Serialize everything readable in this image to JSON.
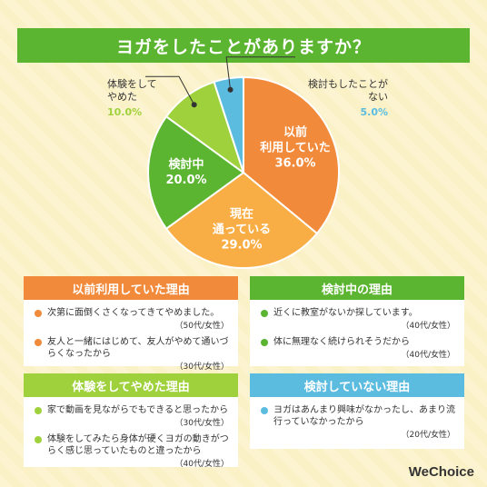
{
  "title": "ヨガをしたことがありますか？",
  "colors": {
    "orange": "#f28a3b",
    "light_orange": "#f9ae45",
    "green": "#5cb531",
    "light_green": "#9fd13c",
    "blue": "#5bbce0"
  },
  "chart_data": {
    "type": "pie",
    "title": "ヨガをしたことがありますか？",
    "slices": [
      {
        "label": "以前利用していた",
        "label_lines": [
          "以前",
          "利用していた"
        ],
        "value": 36.0,
        "pct_text": "36.0%",
        "color": "#f28a3b"
      },
      {
        "label": "現在通っている",
        "label_lines": [
          "現在",
          "通っている"
        ],
        "value": 29.0,
        "pct_text": "29.0%",
        "color": "#f9ae45"
      },
      {
        "label": "検討中",
        "label_lines": [
          "検討中"
        ],
        "value": 20.0,
        "pct_text": "20.0%",
        "color": "#5cb531"
      },
      {
        "label": "体験をしてやめた",
        "label_lines": [
          "体験をして",
          "やめた"
        ],
        "value": 10.0,
        "pct_text": "10.0%",
        "color": "#9fd13c"
      },
      {
        "label": "検討もしたことがない",
        "label_lines": [
          "検討もしたことが",
          "ない"
        ],
        "value": 5.0,
        "pct_text": "5.0%",
        "color": "#5bbce0"
      }
    ]
  },
  "outside_labels": {
    "left": {
      "line1": "体験をして",
      "line2": "やめた",
      "pct": "10.0%"
    },
    "right": {
      "line1": "検討もしたことが",
      "line2": "ない",
      "pct": "5.0%"
    }
  },
  "boxes": {
    "past": {
      "heading": "以前利用していた理由",
      "items": [
        {
          "text": "次第に面倒くさくなってきてやめました。",
          "who": "（50代/女性）"
        },
        {
          "text": "友人と一緒にはじめて、友人がやめて通いづらくなったから",
          "who": "（30代/女性）"
        }
      ]
    },
    "considering": {
      "heading": "検討中の理由",
      "items": [
        {
          "text": "近くに教室がないか探しています。",
          "who": "（40代/女性）"
        },
        {
          "text": "体に無理なく続けられそうだから",
          "who": "（40代/女性）"
        }
      ]
    },
    "quit": {
      "heading": "体験をしてやめた理由",
      "items": [
        {
          "text": "家で動画を見ながらでもできると思ったから",
          "who": "（30代/女性）"
        },
        {
          "text": "体験をしてみたら身体が硬くヨガの動きがつらく感じ思っていたものと違ったから",
          "who": "（40代/女性）"
        }
      ]
    },
    "never": {
      "heading": "検討していない理由",
      "items": [
        {
          "text": "ヨガはあんまり興味がなかったし、あまり流行っていなかったから",
          "who": "（20代/女性）"
        }
      ]
    }
  },
  "logo": "WeChoice"
}
